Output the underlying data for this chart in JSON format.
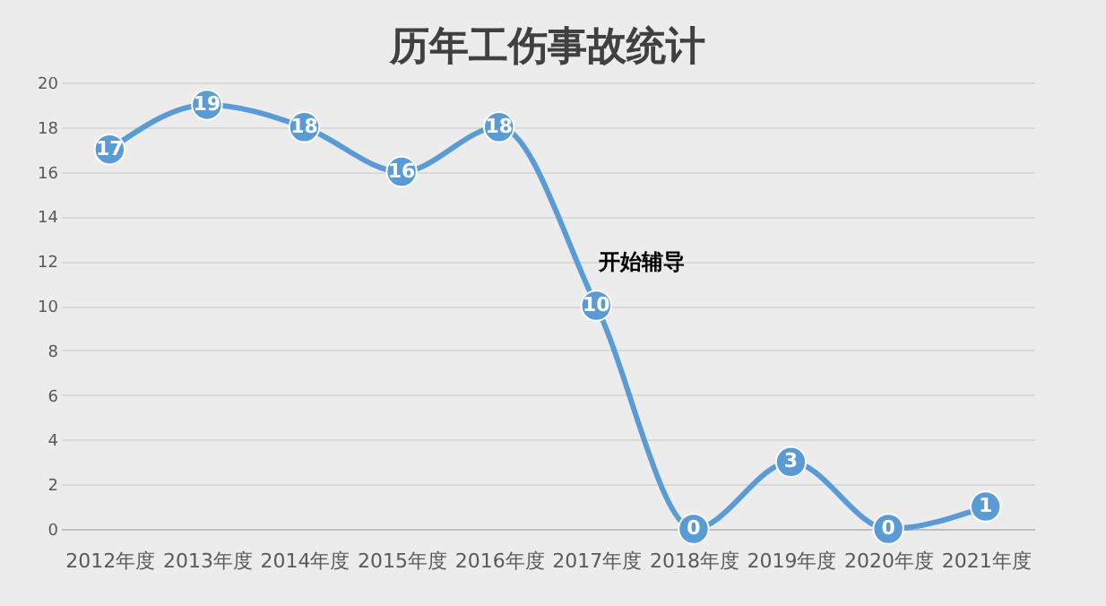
{
  "chart_data": {
    "type": "line",
    "title": "历年工伤事故统计",
    "categories": [
      "2012年度",
      "2013年度",
      "2014年度",
      "2015年度",
      "2016年度",
      "2017年度",
      "2018年度",
      "2019年度",
      "2020年度",
      "2021年度"
    ],
    "series": [
      {
        "color": "#5b9bd5",
        "values": [
          17,
          19,
          18,
          16,
          18,
          10,
          0,
          3,
          0,
          1
        ]
      }
    ],
    "ylim": [
      0,
      20
    ],
    "yticks": [
      0,
      2,
      4,
      6,
      8,
      10,
      12,
      14,
      16,
      18,
      20
    ],
    "grid": "y",
    "marker": "circle",
    "data_labels": true,
    "annotations": [
      "开始辅导"
    ]
  }
}
